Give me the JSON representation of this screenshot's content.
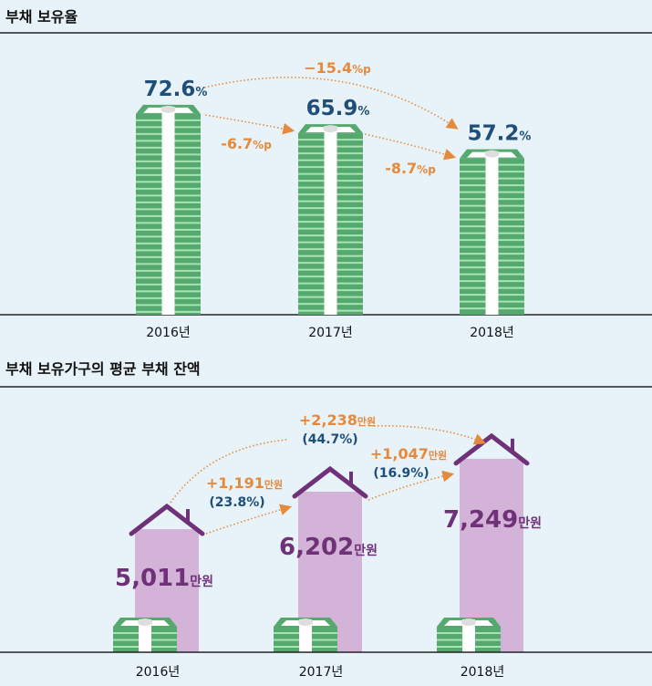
{
  "chart_data": [
    {
      "type": "bar",
      "title": "부채 보유율",
      "categories": [
        "2016년",
        "2017년",
        "2018년"
      ],
      "values": [
        72.6,
        65.9,
        57.2
      ],
      "value_labels": [
        "72.6",
        "65.9",
        "57.2"
      ],
      "value_unit": "%",
      "annotations": [
        {
          "from": "2016년",
          "to": "2017년",
          "label": "-6.7",
          "unit": "%p"
        },
        {
          "from": "2017년",
          "to": "2018년",
          "label": "-8.7",
          "unit": "%p"
        },
        {
          "from": "2016년",
          "to": "2018년",
          "label": "−15.4",
          "unit": "%p"
        }
      ],
      "colors": {
        "bar": "#55a96f",
        "stripe": "#a7e3b3",
        "value": "#1f4e79",
        "change": "#e58a3c"
      }
    },
    {
      "type": "bar",
      "title": "부채 보유가구의 평균 부채 잔액",
      "categories": [
        "2016년",
        "2017년",
        "2018년"
      ],
      "values": [
        5011,
        6202,
        7249
      ],
      "value_labels": [
        "5,011",
        "6,202",
        "7,249"
      ],
      "value_unit": "만원",
      "annotations": [
        {
          "from": "2016년",
          "to": "2017년",
          "label": "+1,191",
          "unit": "만원",
          "pct": "(23.8%)"
        },
        {
          "from": "2017년",
          "to": "2018년",
          "label": "+1,047",
          "unit": "만원",
          "pct": "(16.9%)"
        },
        {
          "from": "2016년",
          "to": "2018년",
          "label": "+2,238",
          "unit": "만원",
          "pct": "(44.7%)"
        }
      ],
      "colors": {
        "house": "#d4b3d8",
        "roof": "#6f3177",
        "value": "#6f3177",
        "change": "#e58a3c",
        "pct": "#1f4e79"
      }
    }
  ]
}
